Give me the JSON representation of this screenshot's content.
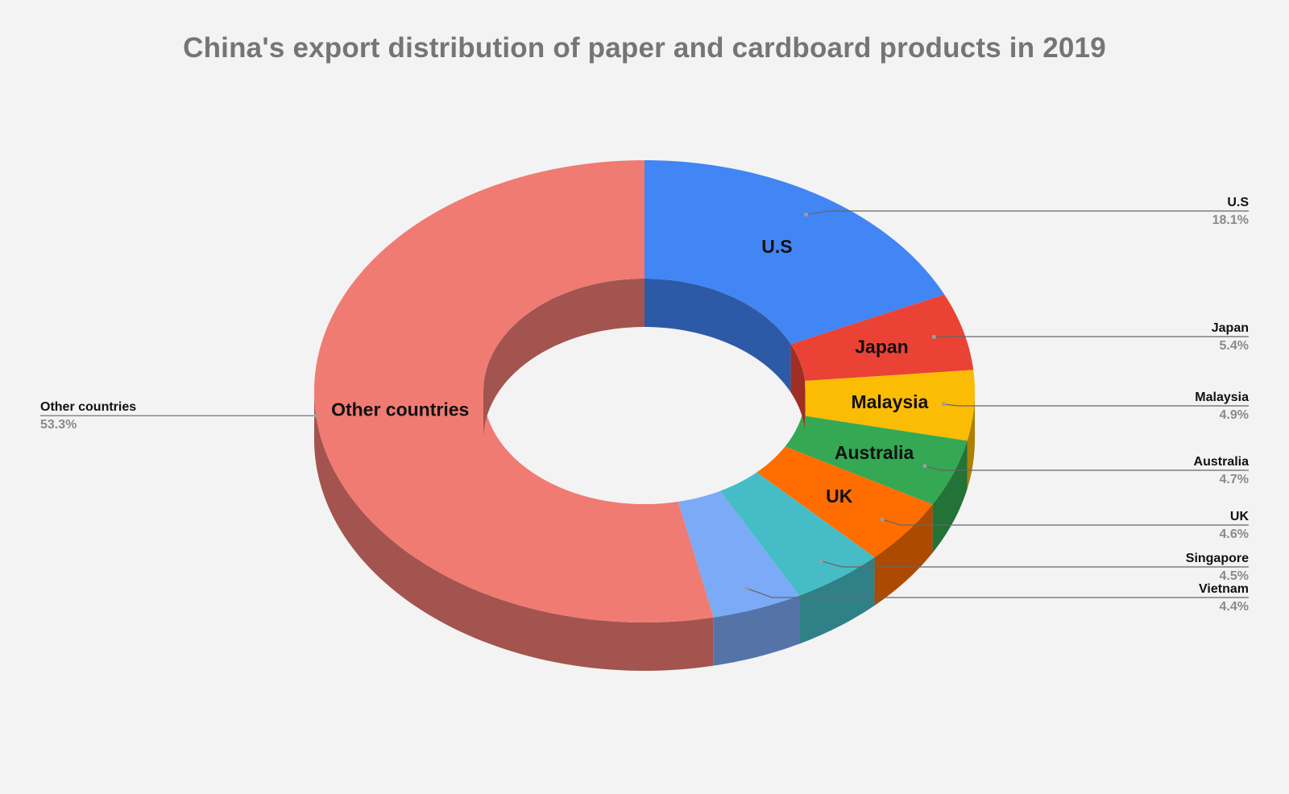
{
  "chart_data": {
    "type": "pie",
    "title": "China's export distribution of paper and cardboard products in 2019",
    "donut": true,
    "three_d": true,
    "legend": "none",
    "slices": [
      {
        "label": "U.S",
        "value": 18.1,
        "percent_label": "18.1%",
        "color": "#4285f4",
        "callout_side": "right"
      },
      {
        "label": "Japan",
        "value": 5.4,
        "percent_label": "5.4%",
        "color": "#ea4335",
        "callout_side": "right"
      },
      {
        "label": "Malaysia",
        "value": 4.9,
        "percent_label": "4.9%",
        "color": "#fbbc04",
        "callout_side": "right"
      },
      {
        "label": "Australia",
        "value": 4.7,
        "percent_label": "4.7%",
        "color": "#34a853",
        "callout_side": "right"
      },
      {
        "label": "UK",
        "value": 4.6,
        "percent_label": "4.6%",
        "color": "#ff6d01",
        "callout_side": "right"
      },
      {
        "label": "Singapore",
        "value": 4.5,
        "percent_label": "4.5%",
        "color": "#46bdc6",
        "callout_side": "right"
      },
      {
        "label": "Vietnam",
        "value": 4.4,
        "percent_label": "4.4%",
        "color": "#7baaf7",
        "callout_side": "right"
      },
      {
        "label": "Other countries",
        "value": 53.3,
        "percent_label": "53.3%",
        "color": "#f07b72",
        "callout_side": "left"
      }
    ],
    "inline_labels": [
      "U.S",
      "Japan",
      "Malaysia",
      "Australia",
      "UK",
      "Other countries"
    ],
    "colors": {
      "background": "#f3f3f3",
      "title": "#757575",
      "percent_text": "#8a8a8a",
      "leader_line": "#666666"
    }
  }
}
